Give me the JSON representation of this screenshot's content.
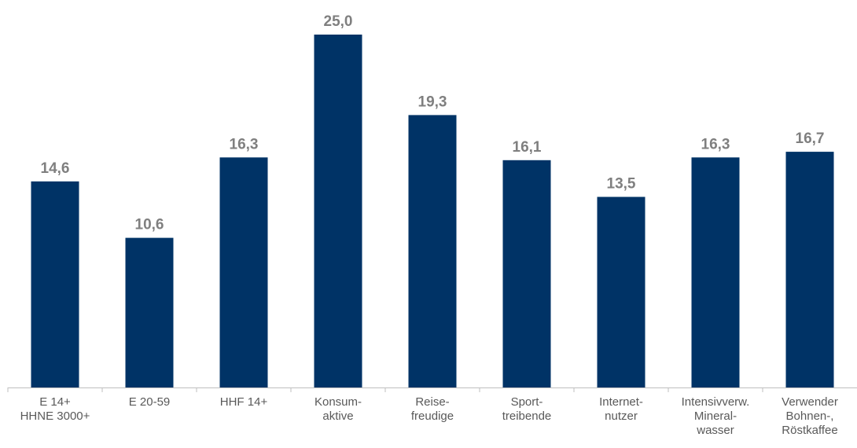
{
  "chart_data": {
    "type": "bar",
    "categories": [
      [
        "E 14+",
        "HHNE 3000+"
      ],
      [
        "E 20-59"
      ],
      [
        "HHF 14+"
      ],
      [
        "Konsum-",
        "aktive"
      ],
      [
        "Reise-",
        "freudige"
      ],
      [
        "Sport-",
        "treibende"
      ],
      [
        "Internet-",
        "nutzer"
      ],
      [
        "Intensivverw.",
        "Mineral-",
        "wasser"
      ],
      [
        "Verwender",
        "Bohnen-,",
        "Röstkaffee"
      ]
    ],
    "values": [
      14.6,
      10.6,
      16.3,
      25.0,
      19.3,
      16.1,
      13.5,
      16.3,
      16.7
    ],
    "value_labels": [
      "14,6",
      "10,6",
      "16,3",
      "25,0",
      "19,3",
      "16,1",
      "13,5",
      "16,3",
      "16,7"
    ],
    "title": "",
    "xlabel": "",
    "ylabel": "",
    "ylim": [
      0,
      25
    ],
    "grid": false,
    "legend": "none",
    "colors": {
      "bar": "#003366",
      "value_label": "#7f7f7f",
      "tick_label": "#595959",
      "axis": "#bfbfbf"
    }
  }
}
